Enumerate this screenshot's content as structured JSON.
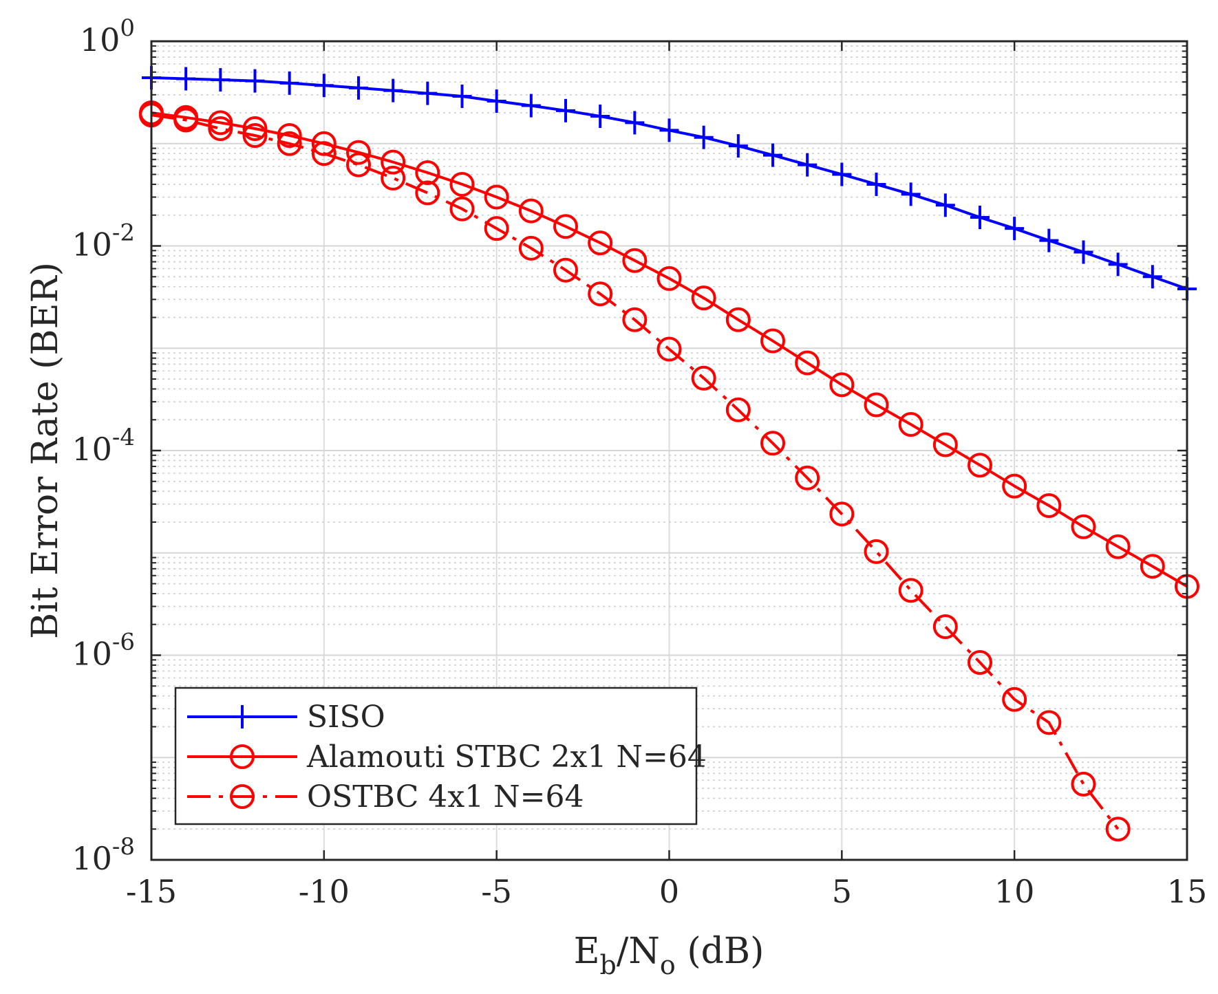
{
  "chart_data": {
    "type": "line",
    "xlabel": {
      "main": "E",
      "sub1": "b",
      "mid": "/N",
      "sub2": "o",
      "tail": " (dB)"
    },
    "ylabel": "Bit Error Rate (BER)",
    "xlim": [
      -15,
      15
    ],
    "ylim": [
      1e-08,
      1
    ],
    "yscale": "log",
    "grid": true,
    "legend_position": "bottom-left",
    "x_ticks": [
      "-15",
      "-10",
      "-5",
      "0",
      "5",
      "10",
      "15"
    ],
    "y_ticks": [
      {
        "base": "10",
        "exp": "0"
      },
      {
        "base": "10",
        "exp": "-2"
      },
      {
        "base": "10",
        "exp": "-4"
      },
      {
        "base": "10",
        "exp": "-6"
      },
      {
        "base": "10",
        "exp": "-8"
      }
    ],
    "series": [
      {
        "name": "SISO",
        "color": "#0000ff",
        "marker": "plus",
        "line": "solid",
        "x": [
          -15,
          -14,
          -13,
          -12,
          -11,
          -10,
          -9,
          -8,
          -7,
          -6,
          -5,
          -4,
          -3,
          -2,
          -1,
          0,
          1,
          2,
          3,
          4,
          5,
          6,
          7,
          8,
          9,
          10,
          11,
          12,
          13,
          14,
          15
        ],
        "y": [
          0.44,
          0.43,
          0.42,
          0.41,
          0.39,
          0.37,
          0.35,
          0.33,
          0.31,
          0.29,
          0.26,
          0.235,
          0.21,
          0.185,
          0.16,
          0.135,
          0.115,
          0.095,
          0.077,
          0.062,
          0.05,
          0.04,
          0.032,
          0.025,
          0.019,
          0.0148,
          0.0113,
          0.0087,
          0.0066,
          0.005,
          0.0038
        ]
      },
      {
        "name": "Alamouti STBC 2x1 N=64",
        "color": "#ff0000",
        "marker": "circle",
        "line": "solid",
        "x": [
          -15,
          -14,
          -13,
          -12,
          -11,
          -10,
          -9,
          -8,
          -7,
          -6,
          -5,
          -4,
          -3,
          -2,
          -1,
          0,
          1,
          2,
          3,
          4,
          5,
          6,
          7,
          8,
          9,
          10,
          11,
          12,
          13,
          14,
          15
        ],
        "y": [
          0.2,
          0.18,
          0.16,
          0.14,
          0.12,
          0.1,
          0.082,
          0.066,
          0.052,
          0.04,
          0.03,
          0.022,
          0.0155,
          0.0107,
          0.0072,
          0.0048,
          0.0031,
          0.0019,
          0.00118,
          0.00072,
          0.00044,
          0.00028,
          0.00018,
          0.000114,
          7.2e-05,
          4.5e-05,
          2.9e-05,
          1.8e-05,
          1.15e-05,
          7.4e-06,
          4.7e-06
        ]
      },
      {
        "name": "OSTBC 4x1 N=64",
        "color": "#ff0000",
        "marker": "circle",
        "line": "dashdot",
        "x": [
          -15,
          -14,
          -13,
          -12,
          -11,
          -10,
          -9,
          -8,
          -7,
          -6,
          -5,
          -4,
          -3,
          -2,
          -1,
          0,
          1,
          2,
          3,
          4,
          5,
          6,
          7,
          8,
          9,
          10,
          11,
          12,
          13
        ],
        "y": [
          0.19,
          0.17,
          0.14,
          0.12,
          0.1,
          0.08,
          0.062,
          0.046,
          0.033,
          0.023,
          0.0148,
          0.0095,
          0.0058,
          0.0034,
          0.0019,
          0.00098,
          0.00051,
          0.00025,
          0.000118,
          5.4e-05,
          2.4e-05,
          1.03e-05,
          4.3e-06,
          1.9e-06,
          8.5e-07,
          3.7e-07,
          2.2e-07,
          5.5e-08,
          2e-08
        ]
      }
    ]
  }
}
